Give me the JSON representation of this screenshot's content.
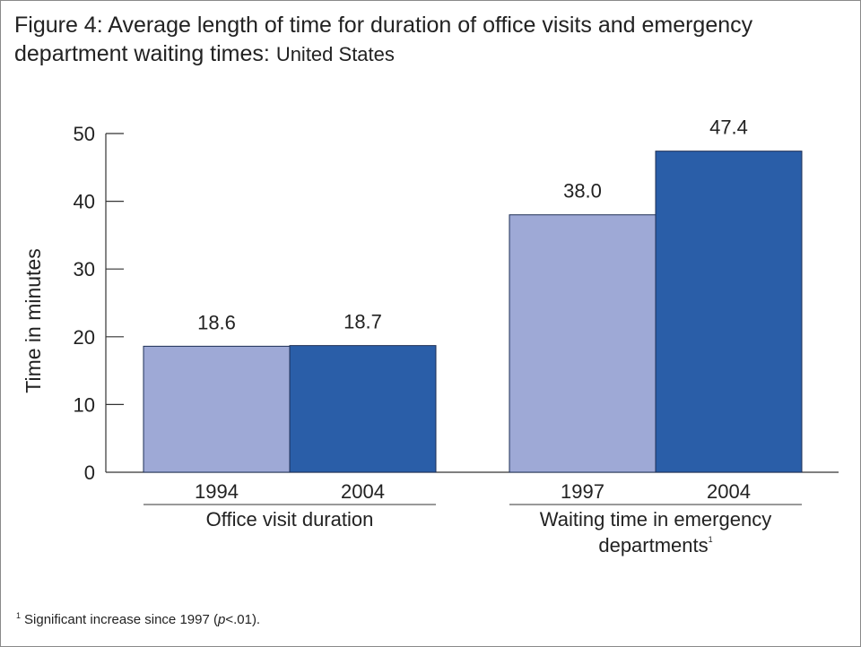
{
  "title": {
    "main": "Figure 4: Average length of time for duration of office visits and emergency department waiting times:",
    "suffix": "United States"
  },
  "footnote": {
    "marker": "1",
    "text_before": "Significant increase since 1997 (",
    "p_symbol": "p",
    "text_after": "<.01)."
  },
  "chart_data": {
    "type": "bar",
    "ylabel": "Time in minutes",
    "ylim": [
      0,
      50
    ],
    "yticks": [
      "0",
      "10",
      "20",
      "30",
      "40",
      "50"
    ],
    "groups": [
      {
        "label": "Office visit duration",
        "label_lines": [
          "Office visit duration"
        ],
        "footnote_marker": "",
        "categories": [
          "1994",
          "2004"
        ],
        "values": [
          18.6,
          18.7
        ],
        "value_labels": [
          "18.6",
          "18.7"
        ]
      },
      {
        "label": "Waiting time in emergency departments",
        "label_lines": [
          "Waiting time in emergency",
          "departments"
        ],
        "footnote_marker": "1",
        "categories": [
          "1997",
          "2004"
        ],
        "values": [
          38.0,
          47.4
        ],
        "value_labels": [
          "38.0",
          "47.4"
        ]
      }
    ],
    "colors": [
      "#9ea9d6",
      "#2a5ea8"
    ],
    "grid": false,
    "legend": "none"
  }
}
